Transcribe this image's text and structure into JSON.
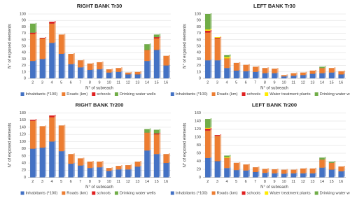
{
  "chart_data": [
    {
      "type": "bar",
      "stacked": true,
      "title": "RIGHT BANK Tr30",
      "x_label": "N° of subreach",
      "y_label": "N° of exposed elements",
      "categories": [
        "2",
        "3",
        "4",
        "5",
        "6",
        "7",
        "8",
        "9",
        "10",
        "11",
        "12",
        "13",
        "14",
        "15",
        "16"
      ],
      "series": [
        {
          "name": "Inhabitants (*100)",
          "color": "#4472c4",
          "values": [
            27,
            30,
            55,
            38,
            22,
            17,
            13,
            14,
            9,
            10,
            6,
            6,
            27,
            44,
            20
          ]
        },
        {
          "name": "Roads (km)",
          "color": "#ed7d31",
          "values": [
            42,
            32,
            30,
            30,
            16,
            11,
            10,
            11,
            5,
            6,
            3,
            4,
            17,
            18,
            15
          ]
        },
        {
          "name": "schools",
          "color": "#e02020",
          "values": [
            2,
            1,
            3,
            0,
            0,
            0,
            0,
            0,
            0,
            0,
            0,
            0,
            0,
            2,
            0
          ]
        },
        {
          "name": "Drinking water wells",
          "color": "#70ad47",
          "values": [
            14,
            0,
            0,
            0,
            0,
            0,
            0,
            0,
            0,
            0,
            0,
            0,
            9,
            4,
            0
          ]
        }
      ],
      "ylim": [
        0,
        100
      ],
      "yticks": [
        0,
        10,
        20,
        30,
        40,
        50,
        60,
        70,
        80,
        90,
        100
      ],
      "grid": true
    },
    {
      "type": "bar",
      "stacked": true,
      "title": "LEFT BANK Tr30",
      "x_label": "N° of subreach",
      "y_label": "N° of exposed elements",
      "categories": [
        "2",
        "3",
        "4",
        "5",
        "6",
        "7",
        "8",
        "9",
        "10",
        "11",
        "12",
        "13",
        "14",
        "15",
        "16"
      ],
      "series": [
        {
          "name": "Inhabitants (*100)",
          "color": "#4472c4",
          "values": [
            28,
            28,
            16,
            12,
            11,
            10,
            8,
            8,
            3,
            4,
            5,
            7,
            8,
            9,
            6
          ]
        },
        {
          "name": "Roads (km)",
          "color": "#ed7d31",
          "values": [
            43,
            34,
            15,
            12,
            10,
            8,
            8,
            7,
            2,
            4,
            4,
            5,
            8,
            7,
            5
          ]
        },
        {
          "name": "schools",
          "color": "#e02020",
          "values": [
            3,
            1,
            0,
            0,
            0,
            0,
            0,
            0,
            0,
            0,
            0,
            0,
            0,
            0,
            0
          ]
        },
        {
          "name": "Water treatment plants",
          "color": "#ffeb00",
          "values": [
            2,
            1,
            2,
            0,
            0,
            0,
            0,
            0,
            0,
            0,
            0,
            0,
            0,
            0,
            0
          ]
        },
        {
          "name": "Drinking water wells",
          "color": "#70ad47",
          "values": [
            24,
            0,
            3,
            0,
            0,
            0,
            0,
            0,
            0,
            0,
            0,
            0,
            2,
            0,
            0
          ]
        }
      ],
      "ylim": [
        0,
        100
      ],
      "yticks": [
        0,
        10,
        20,
        30,
        40,
        50,
        60,
        70,
        80,
        90,
        100
      ],
      "grid": true
    },
    {
      "type": "bar",
      "stacked": true,
      "title": "RIGHT BANK Tr200",
      "x_label": "N° of subreach",
      "y_label": "N° of exposed elements",
      "categories": [
        "2",
        "3",
        "4",
        "5",
        "6",
        "7",
        "8",
        "9",
        "10",
        "11",
        "12",
        "13",
        "14",
        "15",
        "16"
      ],
      "series": [
        {
          "name": "Inhabitants (*100)",
          "color": "#4472c4",
          "values": [
            80,
            83,
            100,
            73,
            38,
            33,
            26,
            28,
            18,
            22,
            22,
            30,
            75,
            65,
            40
          ]
        },
        {
          "name": "Roads (km)",
          "color": "#ed7d31",
          "values": [
            78,
            60,
            68,
            72,
            27,
            20,
            18,
            16,
            8,
            10,
            12,
            14,
            50,
            55,
            25
          ]
        },
        {
          "name": "schools",
          "color": "#e02020",
          "values": [
            3,
            0,
            5,
            0,
            0,
            0,
            0,
            0,
            0,
            0,
            0,
            0,
            0,
            3,
            0
          ]
        },
        {
          "name": "Drinking water wells",
          "color": "#70ad47",
          "values": [
            0,
            0,
            0,
            0,
            0,
            0,
            0,
            0,
            0,
            0,
            0,
            0,
            10,
            10,
            0
          ]
        }
      ],
      "ylim": [
        0,
        180
      ],
      "yticks": [
        0,
        20,
        40,
        60,
        80,
        100,
        120,
        140,
        160,
        180
      ],
      "grid": true
    },
    {
      "type": "bar",
      "stacked": true,
      "title": "LEFT BANK Tr200",
      "x_label": "N° of subreach",
      "y_label": "N° of exposed elements",
      "categories": [
        "2",
        "3",
        "4",
        "5",
        "6",
        "7",
        "8",
        "9",
        "10",
        "11",
        "12",
        "13",
        "14",
        "15",
        "16"
      ],
      "series": [
        {
          "name": "Inhabitants (*100)",
          "color": "#4472c4",
          "values": [
            48,
            40,
            23,
            18,
            17,
            13,
            11,
            10,
            9,
            10,
            10,
            10,
            24,
            19,
            15
          ]
        },
        {
          "name": "Roads (km)",
          "color": "#ed7d31",
          "values": [
            68,
            63,
            25,
            18,
            15,
            12,
            10,
            10,
            10,
            9,
            12,
            12,
            20,
            17,
            12
          ]
        },
        {
          "name": "schools",
          "color": "#e02020",
          "values": [
            5,
            2,
            0,
            0,
            0,
            0,
            0,
            0,
            0,
            0,
            0,
            0,
            0,
            0,
            0
          ]
        },
        {
          "name": "Water treatment plants",
          "color": "#ffeb00",
          "values": [
            2,
            0,
            2,
            0,
            0,
            0,
            0,
            0,
            0,
            0,
            0,
            0,
            0,
            0,
            0
          ]
        },
        {
          "name": "Drinking water wells",
          "color": "#70ad47",
          "values": [
            22,
            0,
            4,
            0,
            0,
            0,
            0,
            0,
            0,
            0,
            0,
            0,
            5,
            3,
            0
          ]
        }
      ],
      "ylim": [
        0,
        160
      ],
      "yticks": [
        0,
        20,
        40,
        60,
        80,
        100,
        120,
        140,
        160
      ],
      "grid": true
    }
  ]
}
